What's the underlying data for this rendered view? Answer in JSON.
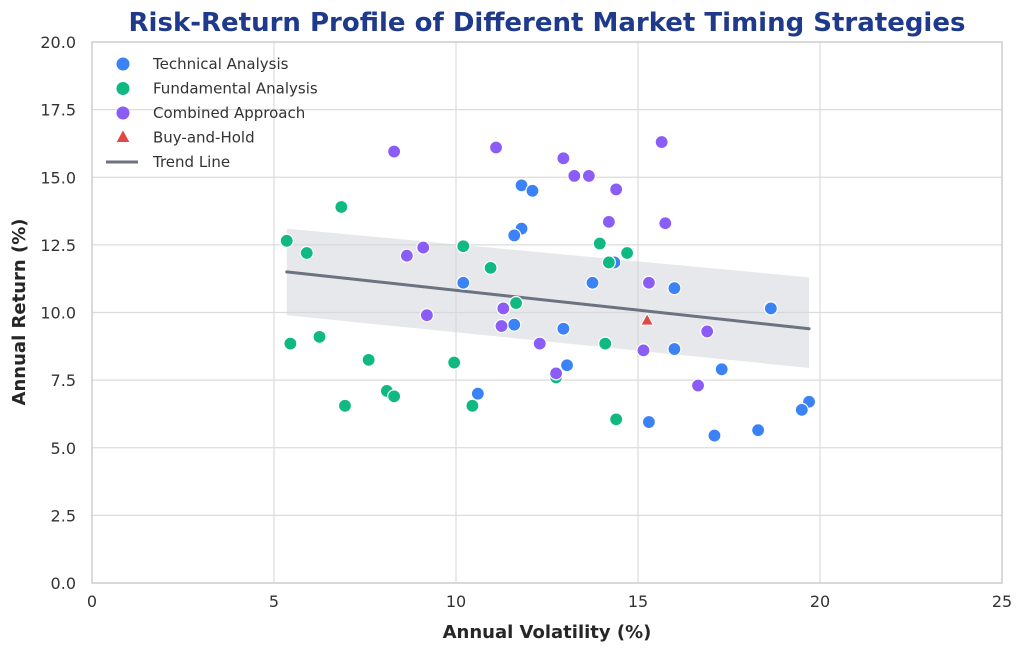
{
  "chart_data": {
    "type": "scatter",
    "title": "Risk-Return Profile of Different Market Timing Strategies",
    "xlabel": "Annual Volatility (%)",
    "ylabel": "Annual Return (%)",
    "xlim": [
      0,
      25
    ],
    "ylim": [
      0,
      20
    ],
    "x_ticks": [
      "0",
      "5",
      "10",
      "15",
      "20",
      "25"
    ],
    "y_ticks": [
      "0.0",
      "2.5",
      "5.0",
      "7.5",
      "10.0",
      "12.5",
      "15.0",
      "17.5",
      "20.0"
    ],
    "grid": true,
    "legend_position": "top-left",
    "series": [
      {
        "name": "Technical Analysis",
        "marker": "circle",
        "color": "#3b82f6",
        "points": [
          [
            10.2,
            11.1
          ],
          [
            11.8,
            14.7
          ],
          [
            12.1,
            14.5
          ],
          [
            11.8,
            13.1
          ],
          [
            11.6,
            12.85
          ],
          [
            14.35,
            11.85
          ],
          [
            13.75,
            11.1
          ],
          [
            16.0,
            10.9
          ],
          [
            18.65,
            10.15
          ],
          [
            11.6,
            9.55
          ],
          [
            12.95,
            9.4
          ],
          [
            16.0,
            8.65
          ],
          [
            13.05,
            8.05
          ],
          [
            17.3,
            7.9
          ],
          [
            10.6,
            7.0
          ],
          [
            19.7,
            6.7
          ],
          [
            19.5,
            6.4
          ],
          [
            15.3,
            5.95
          ],
          [
            18.3,
            5.65
          ],
          [
            17.1,
            5.45
          ]
        ]
      },
      {
        "name": "Fundamental Analysis",
        "marker": "circle",
        "color": "#10b981",
        "points": [
          [
            6.85,
            13.9
          ],
          [
            5.35,
            12.65
          ],
          [
            5.9,
            12.2
          ],
          [
            10.2,
            12.45
          ],
          [
            13.95,
            12.55
          ],
          [
            14.7,
            12.2
          ],
          [
            14.2,
            11.85
          ],
          [
            10.95,
            11.65
          ],
          [
            11.65,
            10.35
          ],
          [
            6.25,
            9.1
          ],
          [
            5.45,
            8.85
          ],
          [
            14.1,
            8.85
          ],
          [
            7.6,
            8.25
          ],
          [
            9.95,
            8.15
          ],
          [
            12.75,
            7.6
          ],
          [
            8.1,
            7.1
          ],
          [
            8.3,
            6.9
          ],
          [
            6.95,
            6.55
          ],
          [
            10.45,
            6.55
          ],
          [
            14.4,
            6.05
          ]
        ]
      },
      {
        "name": "Combined Approach",
        "marker": "circle",
        "color": "#8b5cf6",
        "points": [
          [
            8.3,
            15.95
          ],
          [
            11.1,
            16.1
          ],
          [
            12.95,
            15.7
          ],
          [
            15.65,
            16.3
          ],
          [
            13.25,
            15.05
          ],
          [
            13.65,
            15.05
          ],
          [
            14.4,
            14.55
          ],
          [
            14.2,
            13.35
          ],
          [
            15.75,
            13.3
          ],
          [
            9.1,
            12.4
          ],
          [
            8.65,
            12.1
          ],
          [
            15.3,
            11.1
          ],
          [
            11.3,
            10.15
          ],
          [
            9.2,
            9.9
          ],
          [
            11.25,
            9.5
          ],
          [
            16.9,
            9.3
          ],
          [
            12.3,
            8.85
          ],
          [
            15.15,
            8.6
          ],
          [
            12.75,
            7.75
          ],
          [
            16.65,
            7.3
          ]
        ]
      },
      {
        "name": "Buy-and-Hold",
        "marker": "triangle",
        "color": "#e04848",
        "points": [
          [
            15.25,
            9.7
          ]
        ]
      }
    ],
    "trend_line": {
      "name": "Trend Line",
      "color": "#6b7280",
      "x": [
        5.35,
        19.7
      ],
      "y": [
        11.5,
        9.4
      ],
      "band_upper": [
        13.1,
        11.3
      ],
      "band_lower": [
        9.9,
        7.95
      ]
    }
  }
}
